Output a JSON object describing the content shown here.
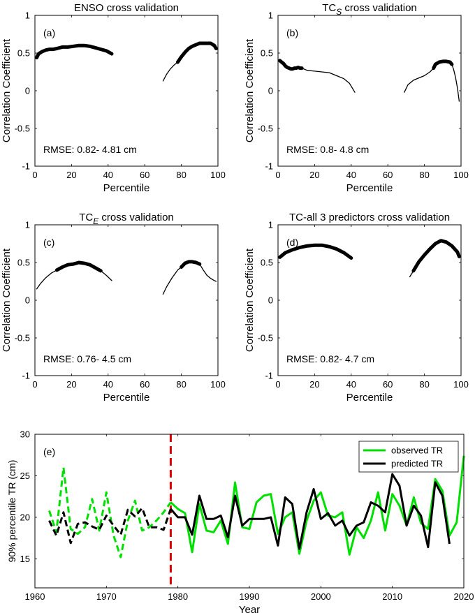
{
  "chart_data": [
    {
      "type": "line",
      "panel": "(a)",
      "title": "ENSO cross validation",
      "xlabel": "Percentile",
      "ylabel": "Correlation Coefficient",
      "xlim": [
        0,
        100
      ],
      "ylim": [
        -1,
        1
      ],
      "xticks": [
        0,
        20,
        40,
        60,
        80,
        100
      ],
      "yticks": [
        -1,
        -0.5,
        0,
        0.5,
        1
      ],
      "annotation": "RMSE: 0.82- 4.81 cm",
      "series": [
        {
          "style": "thick",
          "x": [
            1,
            2,
            4,
            6,
            8,
            10,
            12,
            15,
            18,
            21,
            24,
            27,
            30,
            33,
            36,
            39,
            42
          ],
          "y": [
            0.44,
            0.49,
            0.52,
            0.54,
            0.55,
            0.55,
            0.56,
            0.58,
            0.58,
            0.59,
            0.6,
            0.6,
            0.59,
            0.57,
            0.55,
            0.53,
            0.49
          ]
        },
        {
          "style": "thin",
          "x": [
            70,
            72,
            74,
            76,
            78
          ],
          "y": [
            0.13,
            0.22,
            0.29,
            0.34,
            0.38
          ]
        },
        {
          "style": "thick",
          "x": [
            78,
            80,
            82,
            84,
            86,
            88,
            90,
            92,
            94,
            96,
            98,
            99
          ],
          "y": [
            0.38,
            0.45,
            0.51,
            0.56,
            0.59,
            0.61,
            0.63,
            0.63,
            0.63,
            0.63,
            0.6,
            0.56
          ]
        }
      ]
    },
    {
      "type": "line",
      "panel": "(b)",
      "title_main": "TC",
      "title_sub": "S",
      "title_rest": " cross validation",
      "xlabel": "Percentile",
      "ylabel": "Correlation Coefficient",
      "xlim": [
        0,
        100
      ],
      "ylim": [
        -1,
        1
      ],
      "xticks": [
        0,
        20,
        40,
        60,
        80,
        100
      ],
      "yticks": [
        -1,
        -0.5,
        0,
        0.5,
        1
      ],
      "annotation": "RMSE: 0.8- 4.8 cm",
      "series": [
        {
          "style": "thick",
          "x": [
            1,
            2,
            3,
            4,
            5,
            6,
            7,
            8,
            9,
            10,
            11,
            12,
            13
          ],
          "y": [
            0.4,
            0.38,
            0.36,
            0.33,
            0.31,
            0.3,
            0.29,
            0.29,
            0.3,
            0.3,
            0.31,
            0.3,
            0.3
          ]
        },
        {
          "style": "thin",
          "x": [
            13,
            16,
            20,
            24,
            28,
            32,
            36,
            39,
            42
          ],
          "y": [
            0.3,
            0.27,
            0.26,
            0.25,
            0.24,
            0.2,
            0.16,
            0.1,
            -0.02
          ]
        },
        {
          "style": "thin",
          "x": [
            69,
            71,
            74,
            77,
            80,
            83,
            85
          ],
          "y": [
            -0.02,
            0.08,
            0.14,
            0.17,
            0.2,
            0.25,
            0.3
          ]
        },
        {
          "style": "thick",
          "x": [
            85,
            86,
            88,
            90,
            92,
            94,
            95
          ],
          "y": [
            0.3,
            0.35,
            0.38,
            0.39,
            0.39,
            0.38,
            0.35
          ]
        },
        {
          "style": "thin",
          "x": [
            95,
            96,
            97,
            98,
            99
          ],
          "y": [
            0.35,
            0.28,
            0.18,
            0.04,
            -0.14
          ]
        }
      ]
    },
    {
      "type": "line",
      "panel": "(c)",
      "title_main": "TC",
      "title_sub": "E",
      "title_rest": " cross validation",
      "xlabel": "Percentile",
      "ylabel": "Correlation Coefficient",
      "xlim": [
        0,
        100
      ],
      "ylim": [
        -1,
        1
      ],
      "xticks": [
        0,
        20,
        40,
        60,
        80,
        100
      ],
      "yticks": [
        -1,
        -0.5,
        0,
        0.5,
        1
      ],
      "annotation": "RMSE: 0.76- 4.5 cm",
      "series": [
        {
          "style": "thin",
          "x": [
            1,
            3,
            6,
            9,
            12
          ],
          "y": [
            0.15,
            0.22,
            0.3,
            0.36,
            0.4
          ]
        },
        {
          "style": "thick",
          "x": [
            12,
            15,
            18,
            21,
            24,
            27,
            30,
            33,
            36
          ],
          "y": [
            0.4,
            0.44,
            0.47,
            0.48,
            0.5,
            0.49,
            0.47,
            0.43,
            0.39
          ]
        },
        {
          "style": "thin",
          "x": [
            36,
            39,
            42
          ],
          "y": [
            0.39,
            0.33,
            0.26
          ]
        },
        {
          "style": "thin",
          "x": [
            70,
            72,
            75,
            78,
            80
          ],
          "y": [
            0.08,
            0.18,
            0.3,
            0.4,
            0.44
          ]
        },
        {
          "style": "thick",
          "x": [
            80,
            82,
            84,
            86,
            88,
            90
          ],
          "y": [
            0.44,
            0.49,
            0.51,
            0.51,
            0.5,
            0.48
          ]
        },
        {
          "style": "thin",
          "x": [
            90,
            92,
            94,
            96,
            98,
            99
          ],
          "y": [
            0.48,
            0.4,
            0.33,
            0.29,
            0.26,
            0.25
          ]
        }
      ]
    },
    {
      "type": "line",
      "panel": "(d)",
      "title": "TC-all 3 predictors cross validation",
      "xlabel": "Percentile",
      "ylabel": "Correlation Coefficient",
      "xlim": [
        0,
        100
      ],
      "ylim": [
        -1,
        1
      ],
      "xticks": [
        0,
        20,
        40,
        60,
        80,
        100
      ],
      "yticks": [
        -1,
        -0.5,
        0,
        0.5,
        1
      ],
      "annotation": "RMSE: 0.82- 4.7 cm",
      "series": [
        {
          "style": "thick",
          "x": [
            1,
            4,
            8,
            12,
            16,
            20,
            24,
            28,
            32,
            36,
            40
          ],
          "y": [
            0.57,
            0.63,
            0.67,
            0.7,
            0.72,
            0.73,
            0.73,
            0.71,
            0.68,
            0.63,
            0.56
          ]
        },
        {
          "style": "thin",
          "x": [
            72,
            74
          ],
          "y": [
            0.31,
            0.39
          ]
        },
        {
          "style": "thick",
          "x": [
            74,
            77,
            80,
            83,
            86,
            89,
            92,
            95,
            98,
            99
          ],
          "y": [
            0.39,
            0.51,
            0.6,
            0.68,
            0.75,
            0.79,
            0.77,
            0.72,
            0.64,
            0.58
          ]
        }
      ]
    },
    {
      "type": "line",
      "panel": "(e)",
      "xlabel": "Year",
      "ylabel": "90% percentile TR (cm)",
      "xlim": [
        1960,
        2020
      ],
      "ylim": [
        11.5,
        30
      ],
      "xticks": [
        1960,
        1970,
        1980,
        1990,
        2000,
        2010,
        2020
      ],
      "yticks": [
        15,
        20,
        25,
        30
      ],
      "vline": 1979,
      "legend_position": "top-right",
      "colors": {
        "observed": "#00e000",
        "predicted": "#000000",
        "vline": "#e00000"
      },
      "series": [
        {
          "name": "observed TR",
          "color": "#00e000",
          "x": [
            1962,
            1963,
            1964,
            1965,
            1966,
            1967,
            1968,
            1969,
            1970,
            1971,
            1972,
            1973,
            1974,
            1975,
            1976,
            1977,
            1978,
            1979,
            1980,
            1981,
            1982,
            1983,
            1984,
            1985,
            1986,
            1987,
            1988,
            1989,
            1990,
            1991,
            1992,
            1993,
            1994,
            1995,
            1996,
            1997,
            1998,
            1999,
            2000,
            2001,
            2002,
            2003,
            2004,
            2005,
            2006,
            2007,
            2008,
            2009,
            2010,
            2011,
            2012,
            2013,
            2014,
            2015,
            2016,
            2017,
            2018,
            2019,
            2020
          ],
          "y": [
            20.8,
            18.2,
            26.0,
            18.6,
            18.0,
            18.8,
            22.2,
            18.4,
            23.0,
            17.8,
            15.2,
            19.6,
            22.0,
            18.4,
            18.8,
            19.6,
            20.6,
            21.8,
            21.0,
            20.5,
            15.8,
            21.6,
            18.4,
            18.2,
            19.6,
            16.8,
            24.2,
            18.8,
            18.6,
            21.8,
            22.6,
            22.8,
            18.0,
            20.0,
            20.6,
            15.6,
            19.6,
            22.0,
            23.0,
            20.2,
            20.0,
            20.6,
            15.5,
            18.8,
            17.5,
            19.6,
            23.0,
            18.4,
            22.8,
            21.4,
            19.0,
            22.4,
            19.3,
            18.6,
            24.6,
            23.2,
            17.8,
            19.4,
            27.4
          ]
        },
        {
          "name": "predicted TR",
          "color": "#000000",
          "x": [
            1962,
            1963,
            1964,
            1965,
            1966,
            1967,
            1968,
            1969,
            1970,
            1971,
            1972,
            1973,
            1974,
            1975,
            1976,
            1977,
            1978,
            1979,
            1980,
            1981,
            1982,
            1983,
            1984,
            1985,
            1986,
            1987,
            1988,
            1989,
            1990,
            1991,
            1992,
            1993,
            1994,
            1995,
            1996,
            1997,
            1998,
            1999,
            2000,
            2001,
            2002,
            2003,
            2004,
            2005,
            2006,
            2007,
            2008,
            2009,
            2010,
            2011,
            2012,
            2013,
            2014,
            2015,
            2016,
            2017,
            2018
          ],
          "y": [
            19.6,
            17.8,
            20.6,
            16.9,
            19.2,
            19.4,
            18.9,
            18.5,
            20.2,
            19.0,
            17.9,
            20.9,
            20.1,
            21.1,
            18.8,
            18.8,
            18.5,
            21.0,
            20.0,
            20.0,
            17.9,
            22.6,
            19.8,
            19.8,
            20.2,
            17.6,
            22.6,
            19.0,
            19.8,
            19.8,
            19.8,
            20.0,
            16.6,
            22.4,
            21.6,
            16.2,
            20.6,
            23.4,
            19.8,
            20.5,
            19.0,
            19.6,
            17.8,
            19.0,
            19.4,
            21.8,
            21.4,
            20.6,
            25.2,
            23.8,
            19.0,
            21.4,
            20.2,
            16.4,
            24.2,
            22.6,
            16.8
          ]
        }
      ]
    }
  ]
}
